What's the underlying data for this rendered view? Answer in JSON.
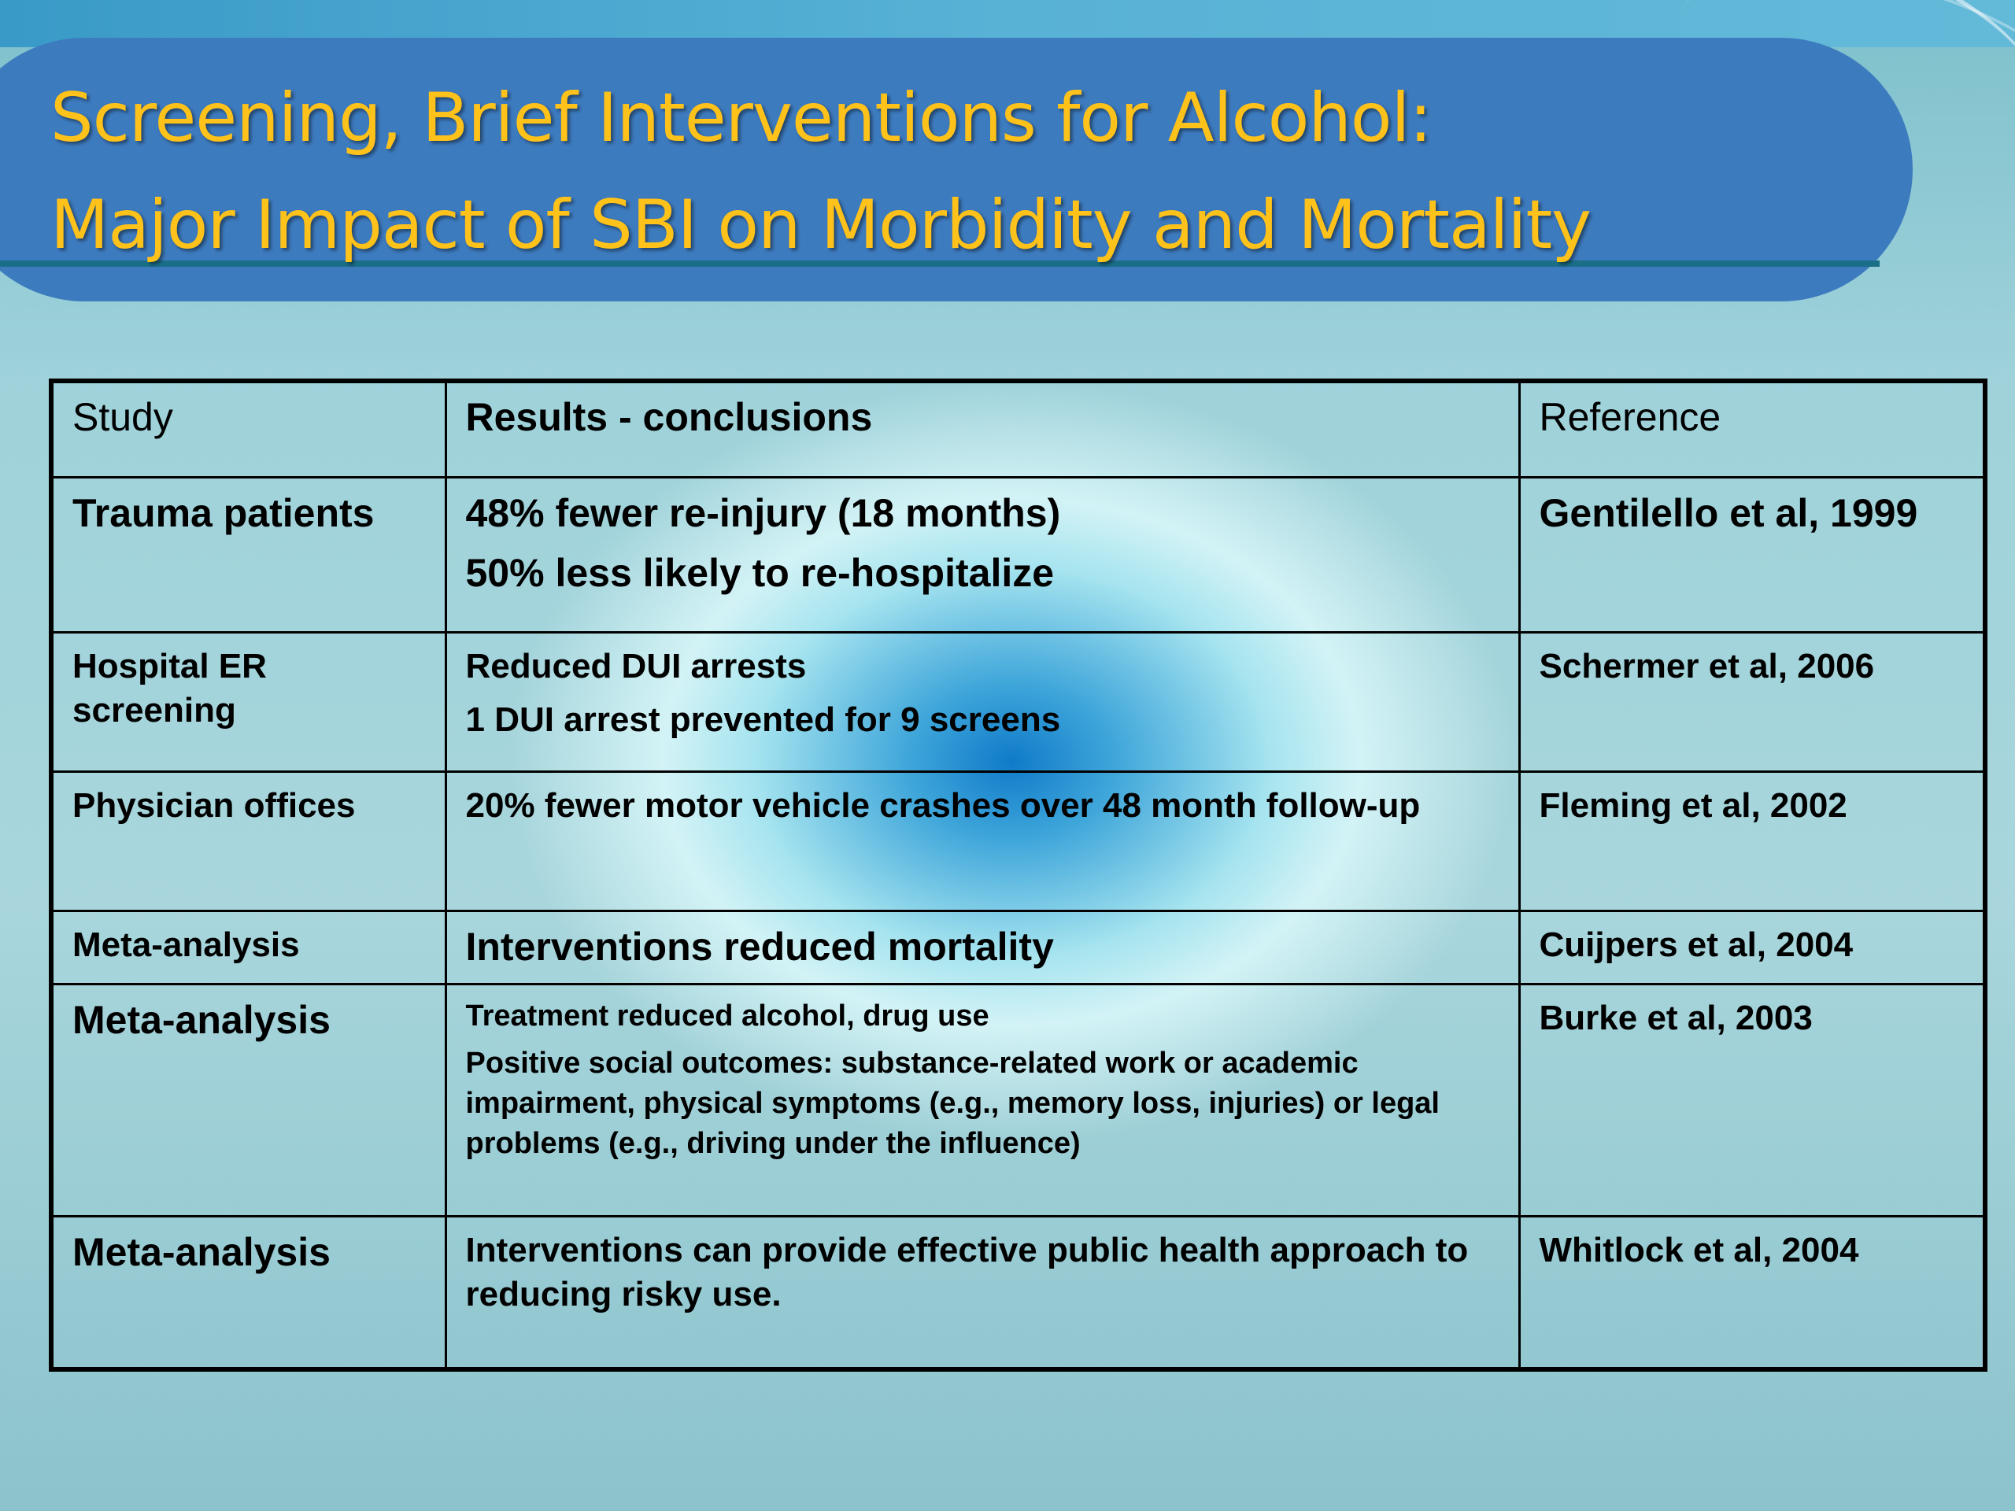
{
  "slide": {
    "title_line1": "Screening, Brief Interventions for Alcohol:",
    "title_line2": "Major Impact of SBI on Morbidity and Mortality"
  },
  "table": {
    "headers": [
      "Study",
      "Results - conclusions",
      "Reference"
    ],
    "rows": [
      {
        "study": "Trauma patients",
        "results": [
          "48% fewer re-injury (18 months)",
          "50% less likely to re-hospitalize"
        ],
        "reference": "Gentilello et al, 1999"
      },
      {
        "study": "Hospital ER screening",
        "results": [
          "Reduced DUI arrests",
          "1 DUI arrest prevented for 9 screens"
        ],
        "reference": "Schermer et al, 2006"
      },
      {
        "study": "Physician offices",
        "results": [
          "20% fewer motor vehicle crashes over 48 month follow-up"
        ],
        "reference": "Fleming et al, 2002"
      },
      {
        "study": "Meta-analysis",
        "results": [
          "Interventions reduced mortality"
        ],
        "reference": "Cuijpers et al, 2004"
      },
      {
        "study": "Meta-analysis",
        "results": [
          "Treatment reduced alcohol, drug use",
          "Positive social outcomes: substance-related work or academic impairment, physical symptoms (e.g., memory loss, injuries) or legal problems (e.g., driving under the influence)"
        ],
        "reference": "Burke et al, 2003"
      },
      {
        "study": "Meta-analysis",
        "results": [
          "Interventions can provide effective public health approach to reducing risky use."
        ],
        "reference": "Whitlock et al, 2004"
      }
    ]
  },
  "colors": {
    "title_text": "#ffc21a",
    "title_bar": "#3d7bbf",
    "background": "#a8d6dc",
    "center_glow": "#0f7ac9"
  }
}
